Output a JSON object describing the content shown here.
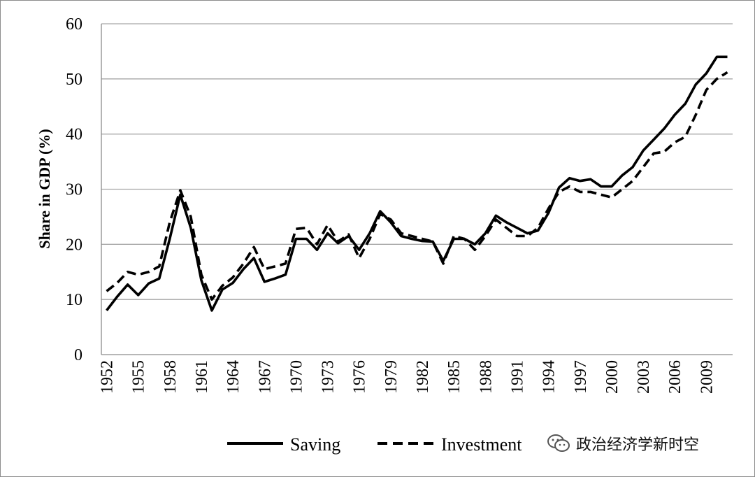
{
  "chart_data": {
    "type": "line",
    "title": "",
    "xlabel": "",
    "ylabel": "Share in GDP (%)",
    "ylim": [
      0,
      60
    ],
    "yticks": [
      "0",
      "10",
      "20",
      "30",
      "40",
      "50",
      "60"
    ],
    "xticks": [
      "1952",
      "1955",
      "1958",
      "1961",
      "1964",
      "1967",
      "1970",
      "1973",
      "1976",
      "1979",
      "1982",
      "1985",
      "1988",
      "1991",
      "1994",
      "1997",
      "2000",
      "2003",
      "2006",
      "2009"
    ],
    "grid": true,
    "legend_position": "bottom",
    "x": [
      1952,
      1953,
      1954,
      1955,
      1956,
      1957,
      1958,
      1959,
      1960,
      1961,
      1962,
      1963,
      1964,
      1965,
      1966,
      1967,
      1968,
      1969,
      1970,
      1971,
      1972,
      1973,
      1974,
      1975,
      1976,
      1977,
      1978,
      1979,
      1980,
      1981,
      1982,
      1983,
      1984,
      1985,
      1986,
      1987,
      1988,
      1989,
      1990,
      1991,
      1992,
      1993,
      1994,
      1995,
      1996,
      1997,
      1998,
      1999,
      2000,
      2001,
      2002,
      2003,
      2004,
      2005,
      2006,
      2007,
      2008,
      2009,
      2010,
      2011
    ],
    "series": [
      {
        "name": "Saving",
        "style": "solid",
        "color": "#000000",
        "values": [
          8,
          10.5,
          12.7,
          10.8,
          12.9,
          13.8,
          21,
          29,
          23,
          13.5,
          8,
          11.8,
          13,
          15.5,
          17.5,
          13.2,
          13.8,
          14.5,
          21,
          21,
          19,
          22,
          20.2,
          21.5,
          19,
          22,
          26,
          24,
          21.5,
          21,
          20.6,
          20.5,
          17,
          21,
          21,
          20,
          22,
          25.2,
          24,
          23,
          22,
          22.5,
          25.7,
          30.3,
          32,
          31.5,
          31.8,
          30.5,
          30.5,
          32.5,
          34,
          37,
          39,
          41,
          43.5,
          45.5,
          49,
          51,
          54,
          54
        ]
      },
      {
        "name": "Investment",
        "style": "dashed",
        "color": "#000000",
        "values": [
          11.5,
          13,
          15,
          14.5,
          15,
          16,
          24,
          29.8,
          25,
          14.5,
          10,
          12.5,
          14,
          16.5,
          19.5,
          15.5,
          16,
          16.5,
          22.8,
          23,
          20,
          23.5,
          20.5,
          21.8,
          17.5,
          21,
          25.5,
          24.5,
          22,
          21.5,
          21,
          20.5,
          16.5,
          21.5,
          21,
          19,
          21.5,
          24.5,
          23,
          21.5,
          21.5,
          23,
          26.5,
          29.5,
          30.5,
          29.5,
          29.5,
          29,
          28.5,
          30,
          31.5,
          34,
          36.5,
          36.8,
          38.5,
          39.5,
          43.5,
          48,
          50,
          51.2
        ]
      }
    ]
  },
  "watermark": {
    "text": "政治经济学新时空",
    "icon": "wechat-icon"
  }
}
